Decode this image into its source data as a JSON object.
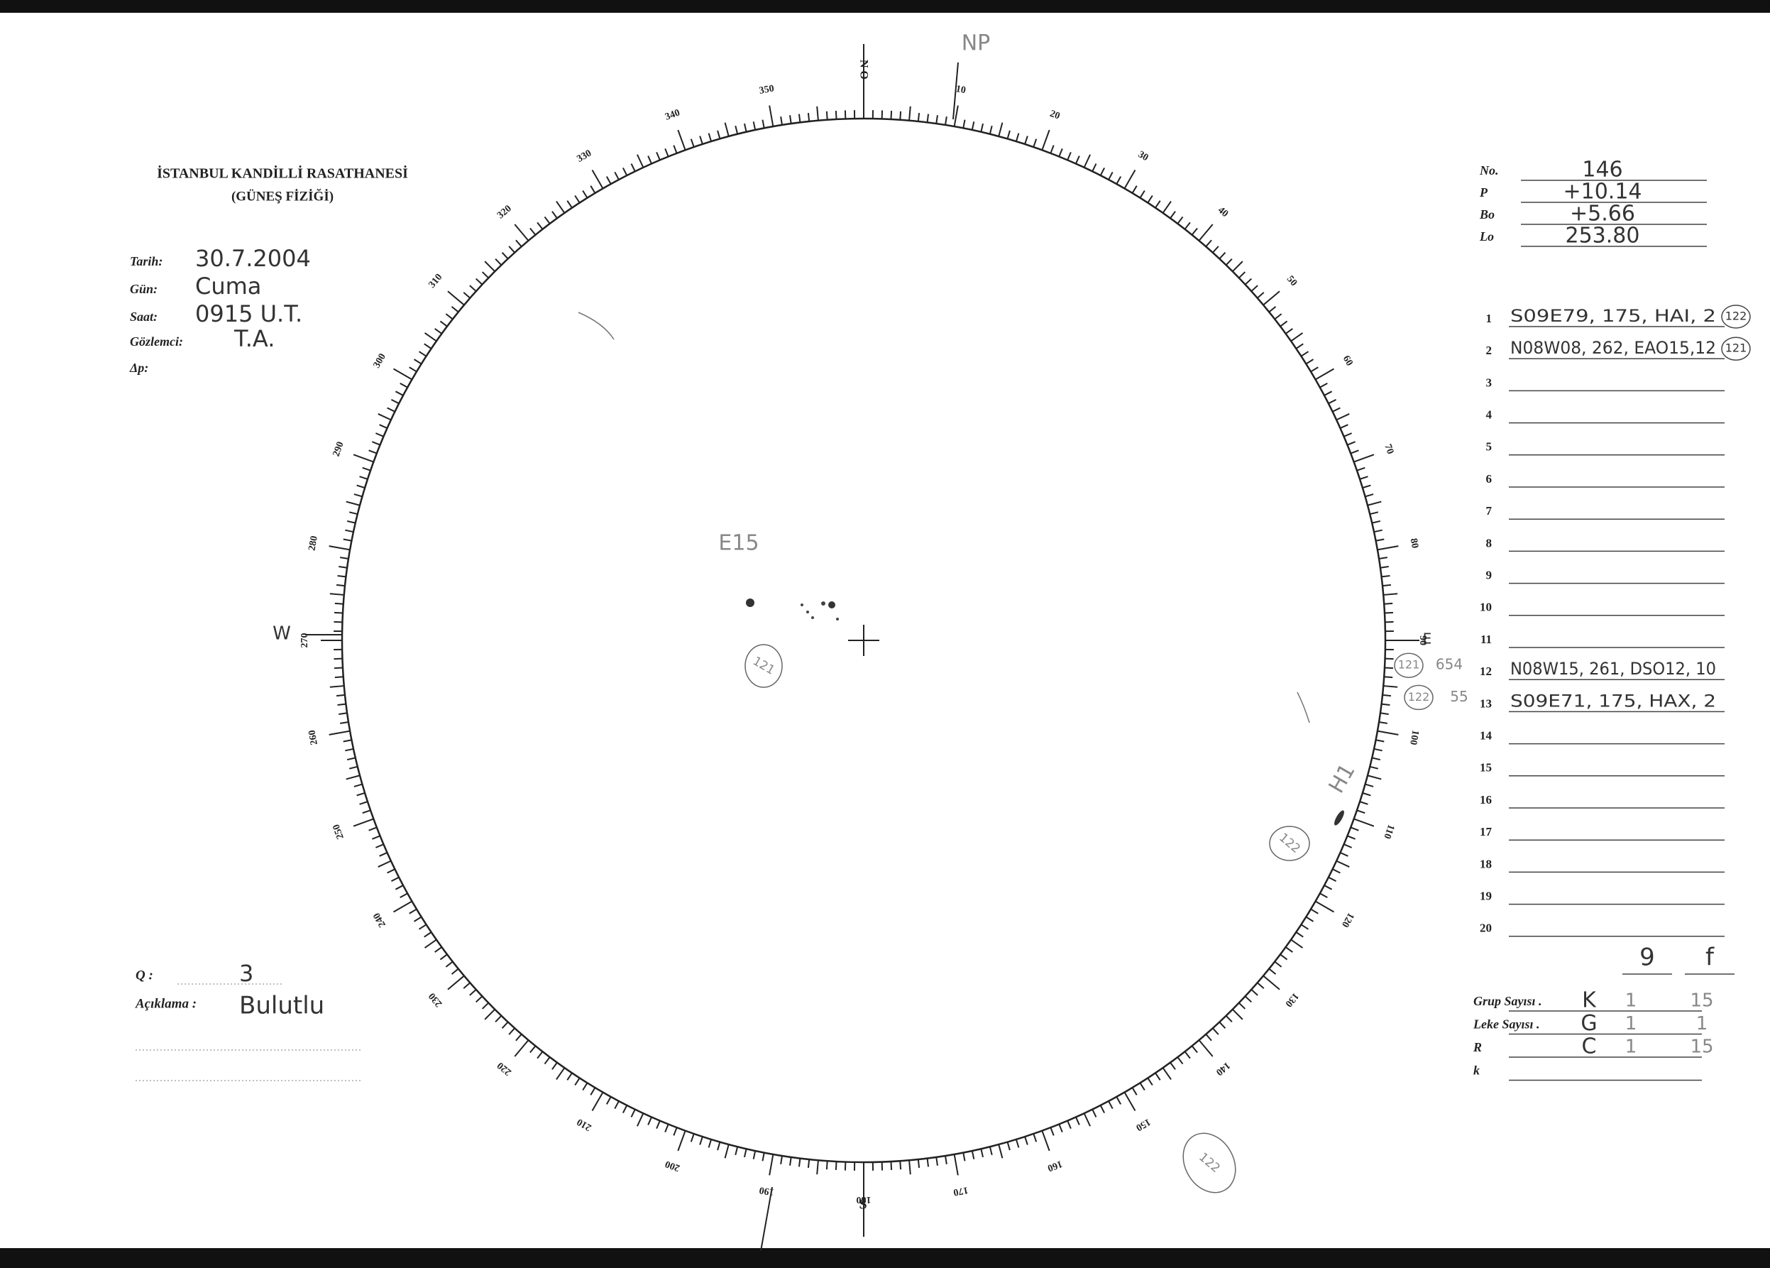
{
  "header": {
    "institution": "İSTANBUL KANDİLLİ RASATHANESİ",
    "department": "(GÜNEŞ FİZİĞİ)"
  },
  "observation": [
    {
      "label": "Tarih:",
      "value": "30.7.2004"
    },
    {
      "label": "Gün:",
      "value": "Cuma"
    },
    {
      "label": "Saat:",
      "value": "0915 U.T."
    },
    {
      "label": "Gözlemci:",
      "value": "T.A."
    },
    {
      "label": "Δp:"
    }
  ],
  "remarks": [
    {
      "label": "Q :",
      "value": "3"
    },
    {
      "label": "Açıklama :",
      "value": "Bulutlu"
    }
  ],
  "parameters": [
    {
      "label": "No.",
      "value": "146"
    },
    {
      "label": "P",
      "value": "+10.14"
    },
    {
      "label": "Bo",
      "value": "+5.66"
    },
    {
      "label": "Lo",
      "value": "253.80"
    }
  ],
  "groups": {
    "numbers": [
      1,
      2,
      3,
      4,
      5,
      6,
      7,
      8,
      9,
      10,
      11,
      12,
      13,
      14,
      15,
      16,
      17,
      18,
      19,
      20
    ],
    "entries": [
      {
        "row": 1,
        "text": "S09E79, 175, HAI, 2",
        "tag": "122"
      },
      {
        "row": 2,
        "text": "N08W08, 262, EAO15,12",
        "tag": "121"
      },
      {
        "row": 12,
        "text": "N08W15, 261, DSO12, 10"
      },
      {
        "row": 13,
        "text": "S09E71, 175, HAX, 2"
      }
    ],
    "margin": [
      {
        "row": 12,
        "tag": "121",
        "note": "654"
      },
      {
        "row": 13,
        "tag": "122",
        "note": "55"
      }
    ]
  },
  "totals": {
    "marks": [
      "9",
      "f"
    ],
    "rows": [
      {
        "label": "Grup Sayısı .",
        "letter": "K",
        "values": [
          "1",
          "15"
        ]
      },
      {
        "label": "Leke Sayısı .",
        "letter": "G",
        "values": [
          "1",
          "1"
        ]
      },
      {
        "label": "R",
        "letter": "C",
        "values": [
          "1",
          "15"
        ]
      },
      {
        "label": "k"
      }
    ]
  },
  "disk": {
    "degree_labels": [
      10,
      20,
      30,
      40,
      50,
      60,
      70,
      80,
      90,
      100,
      110,
      120,
      130,
      140,
      150,
      160,
      170,
      180,
      190,
      200,
      210,
      220,
      230,
      240,
      250,
      260,
      270,
      280,
      290,
      300,
      310,
      320,
      330,
      340,
      350
    ],
    "north": "N O",
    "south": "S",
    "west": "W",
    "east": "E",
    "annotations": {
      "pole": "NP",
      "group_a": "E15",
      "tag_a": "121",
      "group_b": "H1",
      "tag_b": "122",
      "tag_c": "122"
    }
  }
}
